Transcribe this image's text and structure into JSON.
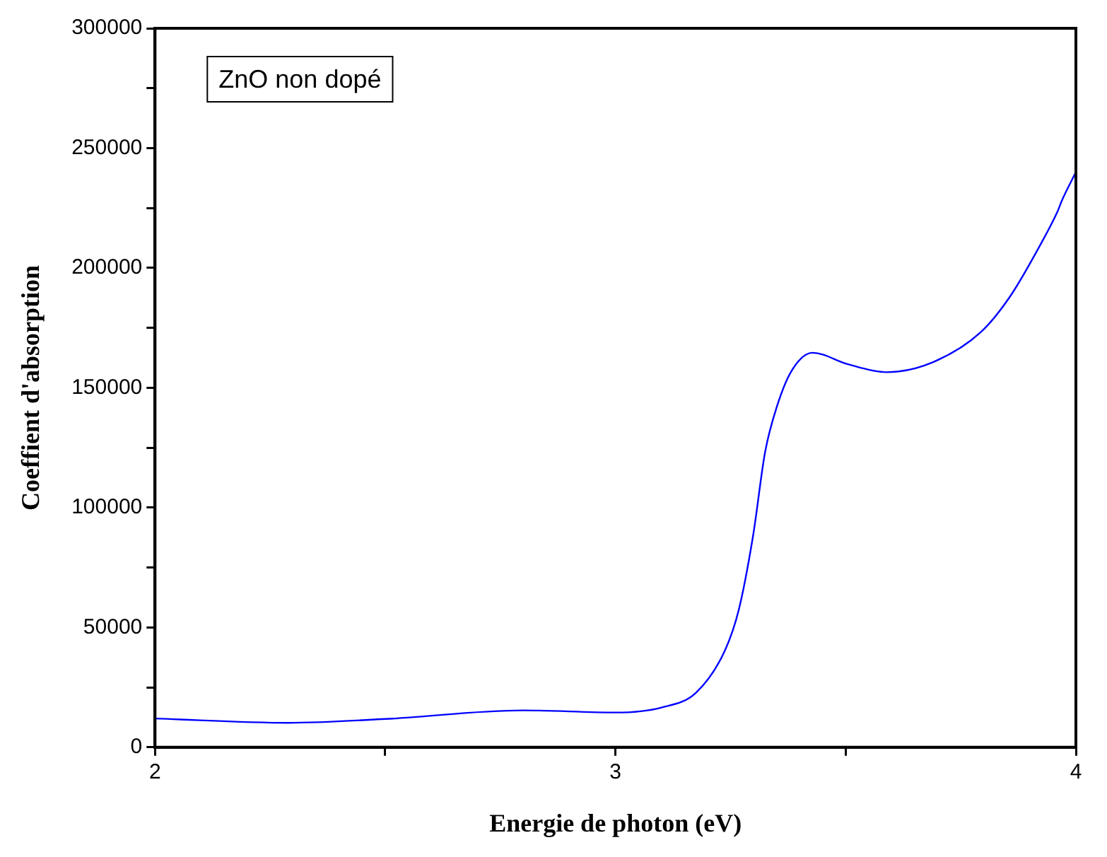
{
  "chart_data": {
    "type": "line",
    "xlabel": "Energie de photon (eV)",
    "ylabel": "Coeffient d'absorption",
    "annotations": [
      "ZnO non dopé"
    ],
    "xlim": [
      2,
      4
    ],
    "xticks": [
      2,
      {
        "value": 2.5,
        "label": null
      },
      3,
      {
        "value": 3.5,
        "label": null
      },
      4
    ],
    "ylim": [
      0,
      300000
    ],
    "yticks": [
      0,
      {
        "value": 25000,
        "label": null
      },
      50000,
      {
        "value": 75000,
        "label": null
      },
      100000,
      {
        "value": 125000,
        "label": null
      },
      150000,
      {
        "value": 175000,
        "label": null
      },
      200000,
      {
        "value": 225000,
        "label": null
      },
      250000,
      {
        "value": 275000,
        "label": null
      },
      300000
    ],
    "grid": false,
    "legend": false,
    "marker": "none",
    "line_style": "solid",
    "series": [
      {
        "color": "#0000ff",
        "x": [
          2,
          2.29,
          2.5,
          2.8,
          3,
          3.1,
          3.175,
          3.237,
          3.268,
          3.299,
          3.325,
          3.351,
          3.382,
          3.428,
          3.505,
          3.588,
          3.691,
          3.794,
          3.856,
          3.918,
          3.96,
          3.97,
          4
        ],
        "values": [
          12000,
          10200,
          11800,
          15400,
          14500,
          16600,
          22800,
          40100,
          57500,
          88400,
          123200,
          142400,
          156900,
          164600,
          159800,
          156500,
          160800,
          173300,
          187800,
          208000,
          223500,
          228300,
          240000
        ]
      }
    ]
  }
}
